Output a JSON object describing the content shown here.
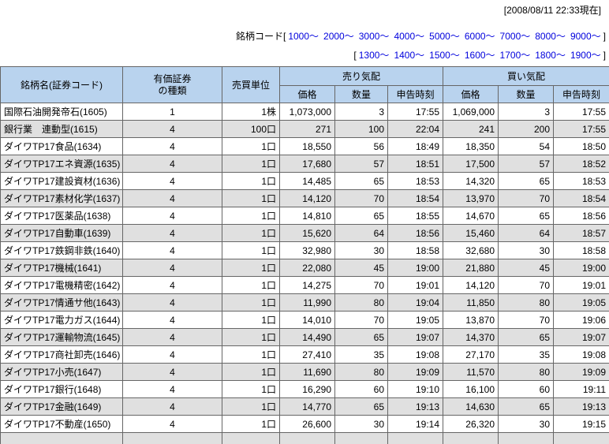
{
  "header": {
    "timestamp": "[2008/08/11 22:33現在]",
    "code_nav": {
      "label": "銘柄コード",
      "line1": {
        "open": "[",
        "links": [
          "1000～",
          "2000～",
          "3000～",
          "4000～",
          "5000～",
          "6000～",
          "7000～",
          "8000～",
          "9000～"
        ],
        "close": "]"
      },
      "line2": {
        "open": "[",
        "links": [
          "1300～",
          "1400～",
          "1500～",
          "1600～",
          "1700～",
          "1800～",
          "1900～"
        ],
        "close": "]"
      }
    }
  },
  "table": {
    "headers": {
      "name": "銘柄名(証券コード)",
      "type": "有価証券\nの種類",
      "unit": "売買単位",
      "ask_group": "売り気配",
      "bid_group": "買い気配",
      "price": "価格",
      "qty": "数量",
      "time": "申告時刻"
    },
    "rows": [
      [
        "国際石油開発帝石(1605)",
        "1",
        "1株",
        "1,073,000",
        "3",
        "17:55",
        "1,069,000",
        "3",
        "17:55"
      ],
      [
        "銀行業　連動型(1615)",
        "4",
        "100口",
        "271",
        "100",
        "22:04",
        "241",
        "200",
        "17:55"
      ],
      [
        "ダイワTP17食品(1634)",
        "4",
        "1口",
        "18,550",
        "56",
        "18:49",
        "18,350",
        "54",
        "18:50"
      ],
      [
        "ダイワTP17エネ資源(1635)",
        "4",
        "1口",
        "17,680",
        "57",
        "18:51",
        "17,500",
        "57",
        "18:52"
      ],
      [
        "ダイワTP17建設資材(1636)",
        "4",
        "1口",
        "14,485",
        "65",
        "18:53",
        "14,320",
        "65",
        "18:53"
      ],
      [
        "ダイワTP17素材化学(1637)",
        "4",
        "1口",
        "14,120",
        "70",
        "18:54",
        "13,970",
        "70",
        "18:54"
      ],
      [
        "ダイワTP17医薬品(1638)",
        "4",
        "1口",
        "14,810",
        "65",
        "18:55",
        "14,670",
        "65",
        "18:56"
      ],
      [
        "ダイワTP17自動車(1639)",
        "4",
        "1口",
        "15,620",
        "64",
        "18:56",
        "15,460",
        "64",
        "18:57"
      ],
      [
        "ダイワTP17鉄鋼非鉄(1640)",
        "4",
        "1口",
        "32,980",
        "30",
        "18:58",
        "32,680",
        "30",
        "18:58"
      ],
      [
        "ダイワTP17機械(1641)",
        "4",
        "1口",
        "22,080",
        "45",
        "19:00",
        "21,880",
        "45",
        "19:00"
      ],
      [
        "ダイワTP17電機精密(1642)",
        "4",
        "1口",
        "14,275",
        "70",
        "19:01",
        "14,120",
        "70",
        "19:01"
      ],
      [
        "ダイワTP17情通サ他(1643)",
        "4",
        "1口",
        "11,990",
        "80",
        "19:04",
        "11,850",
        "80",
        "19:05"
      ],
      [
        "ダイワTP17電力ガス(1644)",
        "4",
        "1口",
        "14,010",
        "70",
        "19:05",
        "13,870",
        "70",
        "19:06"
      ],
      [
        "ダイワTP17運輸物流(1645)",
        "4",
        "1口",
        "14,490",
        "65",
        "19:07",
        "14,370",
        "65",
        "19:07"
      ],
      [
        "ダイワTP17商社卸売(1646)",
        "4",
        "1口",
        "27,410",
        "35",
        "19:08",
        "27,170",
        "35",
        "19:08"
      ],
      [
        "ダイワTP17小売(1647)",
        "4",
        "1口",
        "11,690",
        "80",
        "19:09",
        "11,570",
        "80",
        "19:09"
      ],
      [
        "ダイワTP17銀行(1648)",
        "4",
        "1口",
        "16,290",
        "60",
        "19:10",
        "16,100",
        "60",
        "19:11"
      ],
      [
        "ダイワTP17金融(1649)",
        "4",
        "1口",
        "14,770",
        "65",
        "19:13",
        "14,630",
        "65",
        "19:13"
      ],
      [
        "ダイワTP17不動産(1650)",
        "4",
        "1口",
        "26,600",
        "30",
        "19:14",
        "26,320",
        "30",
        "19:15"
      ]
    ],
    "partial_row": [
      "",
      "",
      "",
      "",
      "",
      "",
      "",
      "",
      ""
    ]
  }
}
